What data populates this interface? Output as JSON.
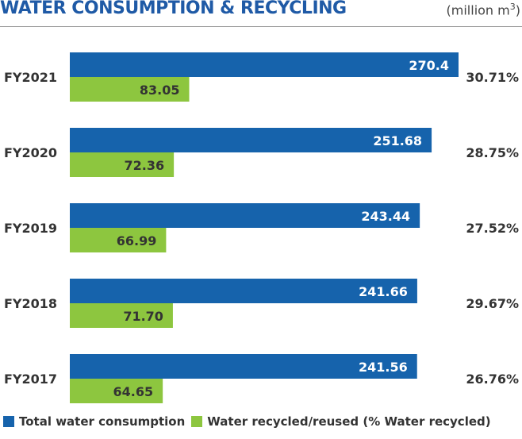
{
  "title": "WATER CONSUMPTION & RECYCLING",
  "unit_base": "(million m",
  "unit_sup": "3",
  "unit_close": ")",
  "colors": {
    "total": "#1663ac",
    "recycled": "#8dc63f",
    "text": "#333333",
    "title": "#1f5aa6"
  },
  "chart_data": {
    "type": "bar",
    "orientation": "horizontal",
    "title": "WATER CONSUMPTION & RECYCLING",
    "unit": "million m3",
    "categories": [
      "FY2021",
      "FY2020",
      "FY2019",
      "FY2018",
      "FY2017"
    ],
    "series": [
      {
        "name": "Total water consumption",
        "values": [
          270.4,
          251.68,
          243.44,
          241.66,
          241.56
        ],
        "labels": [
          "270.4",
          "251.68",
          "243.44",
          "241.66",
          "241.56"
        ]
      },
      {
        "name": "Water recycled/reused (% Water recycled)",
        "values": [
          83.05,
          72.36,
          66.99,
          71.7,
          64.65
        ],
        "labels": [
          "83.05",
          "72.36",
          "66.99",
          "71.70",
          "64.65"
        ]
      }
    ],
    "percent_recycled": [
      "30.71%",
      "28.75%",
      "27.52%",
      "29.67%",
      "26.76%"
    ],
    "legend_position": "bottom-left",
    "grid": false
  }
}
